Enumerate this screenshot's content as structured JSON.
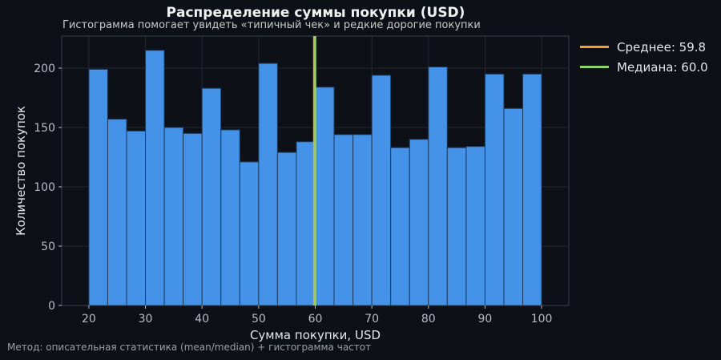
{
  "colors": {
    "background": "#0d1117",
    "bar_fill": "#4493e8",
    "bar_edge": "#1c3a5e",
    "mean_line": "#f0a030",
    "median_line": "#8fd46a",
    "grid": "#2a2f38",
    "axis_text": "#b8bcc4"
  },
  "header": {
    "title": "Распределение суммы покупки (USD)",
    "subtitle": "Гистограмма помогает увидеть «типичный чек» и редкие дорогие покупки"
  },
  "legend": {
    "mean_label": "Среднее: 59.8",
    "median_label": "Медиана: 60.0"
  },
  "footer": {
    "method": "Метод: описательная статистика (mean/median) + гистограмма частот"
  },
  "chart_data": {
    "type": "bar",
    "title": "Распределение суммы покупки (USD)",
    "subtitle": "Гистограмма помогает увидеть «типичный чек» и редкие дорогие покупки",
    "xlabel": "Сумма покупки, USD",
    "ylabel": "Количество покупок",
    "xlim": [
      15.2,
      104.8
    ],
    "ylim": [
      0,
      227
    ],
    "xticks": [
      20,
      30,
      40,
      50,
      60,
      70,
      80,
      90,
      100
    ],
    "yticks": [
      0,
      50,
      100,
      150,
      200
    ],
    "bin_edges": [
      20,
      23.33,
      26.67,
      30,
      33.33,
      36.67,
      40,
      43.33,
      46.67,
      50,
      53.33,
      56.67,
      60,
      63.33,
      66.67,
      70,
      73.33,
      76.67,
      80,
      83.33,
      86.67,
      90,
      93.33,
      96.67,
      100
    ],
    "values": [
      199,
      157,
      147,
      215,
      150,
      145,
      183,
      148,
      121,
      204,
      129,
      138,
      184,
      144,
      144,
      194,
      133,
      140,
      201,
      133,
      134,
      195,
      166,
      195
    ],
    "mean": 59.8,
    "median": 60.0,
    "grid": true,
    "legend_position": "outside right"
  }
}
